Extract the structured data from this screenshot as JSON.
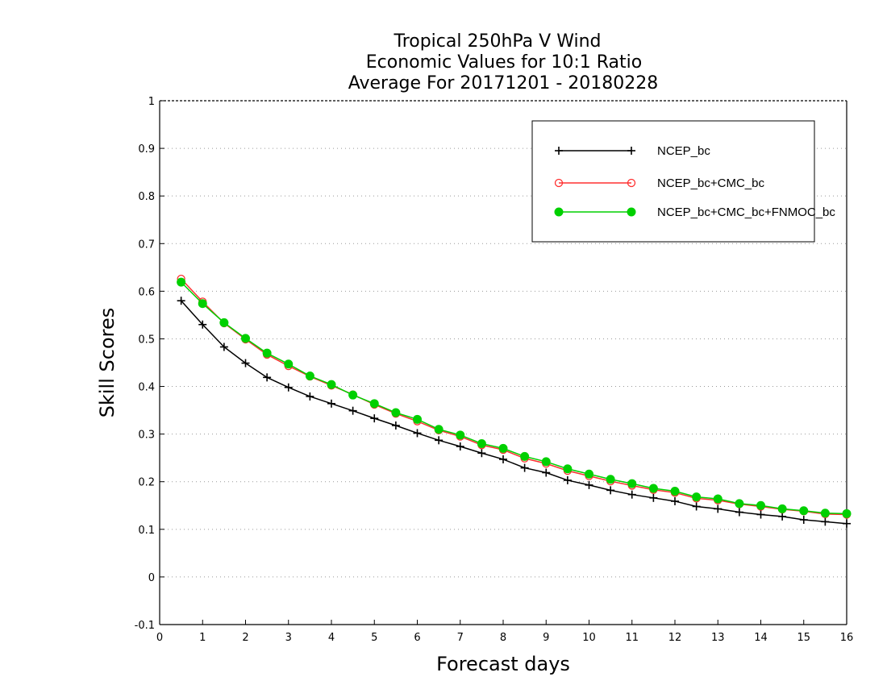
{
  "chart_data": {
    "type": "line",
    "title": [
      "Tropical 250hPa V Wind",
      "Economic Values for 10:1 Ratio",
      "Average For 20171201 - 20180228"
    ],
    "xlabel": "Forecast days",
    "ylabel": "Skill Scores",
    "xlim": [
      0,
      16
    ],
    "ylim": [
      -0.1,
      1
    ],
    "xticks": [
      0,
      1,
      2,
      3,
      4,
      5,
      6,
      7,
      8,
      9,
      10,
      11,
      12,
      13,
      14,
      15,
      16
    ],
    "yticks": [
      -0.1,
      0,
      0.1,
      0.2,
      0.3,
      0.4,
      0.5,
      0.6,
      0.7,
      0.8,
      0.9,
      1
    ],
    "ytick_labels": [
      "-0.1",
      "0",
      "0.1",
      "0.2",
      "0.3",
      "0.4",
      "0.5",
      "0.6",
      "0.7",
      "0.8",
      "0.9",
      "1"
    ],
    "grid": "horizontal dotted",
    "legend_position": "top-right",
    "x": [
      0.5,
      1,
      1.5,
      2,
      2.5,
      3,
      3.5,
      4,
      4.5,
      5,
      5.5,
      6,
      6.5,
      7,
      7.5,
      8,
      8.5,
      9,
      9.5,
      10,
      10.5,
      11,
      11.5,
      12,
      12.5,
      13,
      13.5,
      14,
      14.5,
      15,
      15.5,
      16
    ],
    "series": [
      {
        "name": "NCEP_bc",
        "color": "#000000",
        "marker": "plus",
        "values": [
          0.58,
          0.53,
          0.483,
          0.449,
          0.419,
          0.398,
          0.379,
          0.364,
          0.349,
          0.333,
          0.318,
          0.302,
          0.287,
          0.274,
          0.26,
          0.247,
          0.229,
          0.219,
          0.203,
          0.193,
          0.182,
          0.173,
          0.166,
          0.159,
          0.148,
          0.143,
          0.136,
          0.131,
          0.127,
          0.12,
          0.116,
          0.112
        ]
      },
      {
        "name": "NCEP_bc+CMC_bc",
        "color": "#ff3030",
        "marker": "open-circle",
        "values": [
          0.626,
          0.578,
          0.533,
          0.499,
          0.467,
          0.443,
          0.421,
          0.402,
          0.383,
          0.362,
          0.343,
          0.327,
          0.308,
          0.295,
          0.277,
          0.267,
          0.249,
          0.238,
          0.223,
          0.212,
          0.201,
          0.192,
          0.183,
          0.177,
          0.165,
          0.161,
          0.153,
          0.148,
          0.142,
          0.138,
          0.132,
          0.131
        ]
      },
      {
        "name": "NCEP_bc+CMC_bc+FNMOC_bc",
        "color": "#00d000",
        "marker": "filled-circle",
        "values": [
          0.619,
          0.574,
          0.534,
          0.501,
          0.47,
          0.447,
          0.422,
          0.404,
          0.382,
          0.364,
          0.345,
          0.331,
          0.31,
          0.298,
          0.28,
          0.27,
          0.253,
          0.242,
          0.227,
          0.216,
          0.205,
          0.196,
          0.186,
          0.18,
          0.168,
          0.164,
          0.154,
          0.15,
          0.143,
          0.139,
          0.134,
          0.133
        ]
      }
    ]
  }
}
